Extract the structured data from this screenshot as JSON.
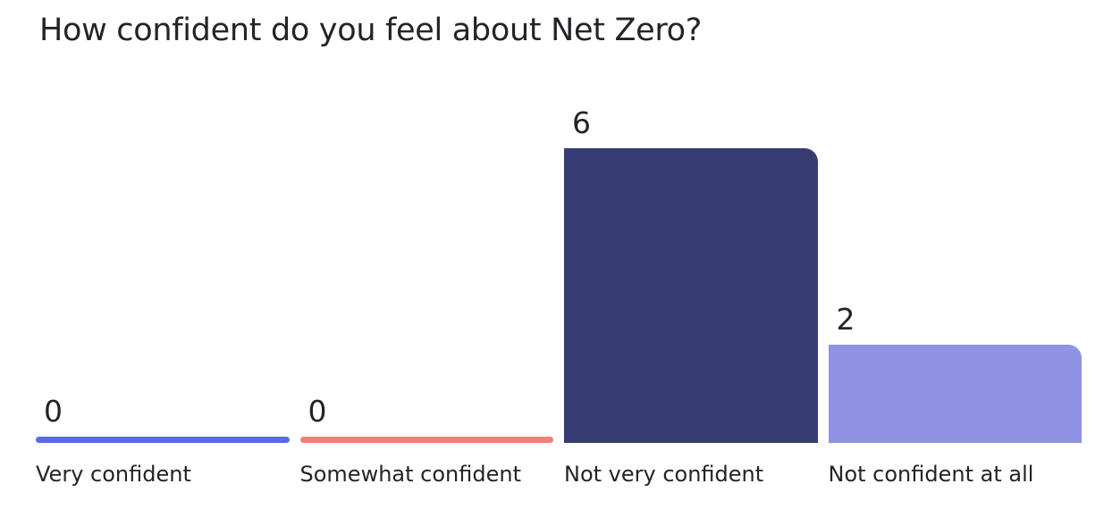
{
  "page": {
    "background_color": "#ffffff",
    "text_color": "#222428"
  },
  "chart_data": {
    "type": "bar",
    "title": "How confident do you feel about Net Zero?",
    "categories": [
      "Very confident",
      "Somewhat confident",
      "Not very confident",
      "Not confident at all"
    ],
    "values": [
      0,
      0,
      6,
      2
    ],
    "value_labels": [
      "0",
      "0",
      "6",
      "2"
    ],
    "bar_colors": [
      "#5A6AE3",
      "#F08078",
      "#373D73",
      "#9092E3"
    ],
    "ylim": [
      0,
      6
    ],
    "xlabel": "",
    "ylabel": "",
    "grid": false,
    "legend": false,
    "axes_visible": false,
    "value_label_position": "above-bar-left",
    "orientation": "vertical"
  }
}
